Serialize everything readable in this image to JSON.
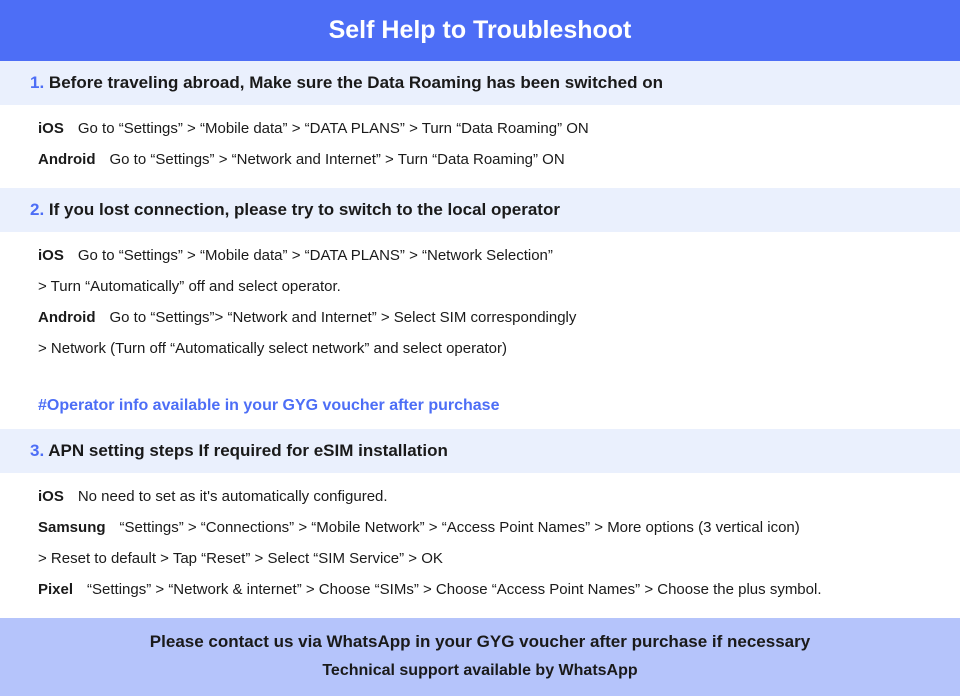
{
  "header_title": "Self Help to Troubleshoot",
  "colors": {
    "header_bg": "#4d6ef6",
    "header_text": "#ffffff",
    "section_header_bg": "#eaf0fd",
    "number_color": "#4d6ef6",
    "body_text": "#1a1a1a",
    "note_color": "#4d6ef6",
    "footer_bg": "#b5c4fb"
  },
  "typography": {
    "header_fontsize": 25,
    "section_header_fontsize": 17,
    "body_fontsize": 15,
    "footer_fontsize": 17
  },
  "sections": [
    {
      "num": "1.",
      "title_bold": "Before traveling abroad,",
      "title_rest": " Make sure the Data Roaming has been switched on",
      "lines": [
        {
          "os": "iOS",
          "text": "Go to “Settings” > “Mobile data” > “DATA PLANS” > Turn “Data Roaming” ON"
        },
        {
          "os": "Android",
          "text": "Go to “Settings” > “Network and Internet” > Turn “Data Roaming” ON"
        }
      ]
    },
    {
      "num": "2.",
      "title_bold": "If you lost connection, please try to switch to the local operator",
      "title_rest": "",
      "lines": [
        {
          "os": "iOS",
          "text": "Go to “Settings” > “Mobile data” > “DATA PLANS” > “Network Selection”",
          "cont": "> Turn “Automatically” off and select operator."
        },
        {
          "os": "Android",
          "text": "Go to “Settings”>  “Network and Internet” > Select SIM correspondingly",
          "cont": "> Network (Turn off “Automatically select network” and select operator)"
        }
      ],
      "note": "#Operator info available in your GYG voucher after purchase"
    },
    {
      "num": "3.",
      "title_bold": "APN setting steps If required for eSIM installation",
      "title_rest": "",
      "lines": [
        {
          "os": "iOS",
          "text": "No need to set as it's automatically configured."
        },
        {
          "os": "Samsung",
          "text": "“Settings” > “Connections” > “Mobile Network” > “Access Point Names” > More options (3 vertical icon)",
          "cont": "> Reset to default > Tap “Reset” > Select “SIM Service” > OK"
        },
        {
          "os": "Pixel",
          "text": "“Settings” > “Network & internet” > Choose “SIMs” > Choose “Access Point Names” > Choose the plus symbol."
        }
      ]
    }
  ],
  "footer": {
    "line1": "Please contact us via WhatsApp  in your GYG voucher after purchase if necessary",
    "line2": "Technical support available by WhatsApp"
  }
}
